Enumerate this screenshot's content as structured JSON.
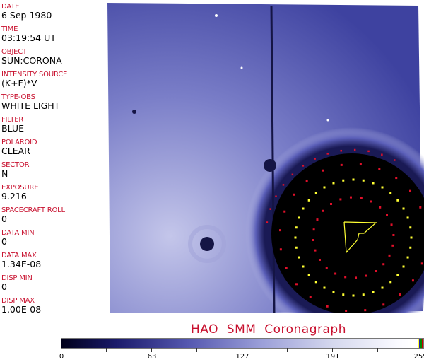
{
  "header_fields": [
    {
      "label": "DATE",
      "value": "6 Sep 1980"
    },
    {
      "label": "TIME",
      "value": "03:19:54 UT"
    },
    {
      "label": "OBJECT",
      "value": "SUN:CORONA"
    },
    {
      "label": "INTENSITY SOURCE",
      "value": "(K+F)*V"
    },
    {
      "label": "TYPE-OBS",
      "value": "WHITE LIGHT"
    },
    {
      "label": "FILTER",
      "value": "BLUE"
    },
    {
      "label": "POLAROID",
      "value": "CLEAR"
    },
    {
      "label": "SECTOR",
      "value": "N"
    },
    {
      "label": "EXPOSURE",
      "value": "9.216"
    },
    {
      "label": "SPACECRAFT ROLL",
      "value": "0"
    },
    {
      "label": "DATA MIN",
      "value": "0"
    },
    {
      "label": "DATA MAX",
      "value": "1.34E-08"
    },
    {
      "label": "DISP MIN",
      "value": "0"
    },
    {
      "label": "DISP MAX",
      "value": "1.00E-08"
    }
  ],
  "title": "HAO  SMM  Coronagraph",
  "colorbar": {
    "ticks": [
      "0",
      "63",
      "127",
      "191",
      "255"
    ],
    "min": 0,
    "max": 255
  },
  "colors": {
    "label": "#c8102e",
    "overlay_yellow": "#ffff33",
    "overlay_red": "#e0102a",
    "background": "#4a4ea8"
  }
}
